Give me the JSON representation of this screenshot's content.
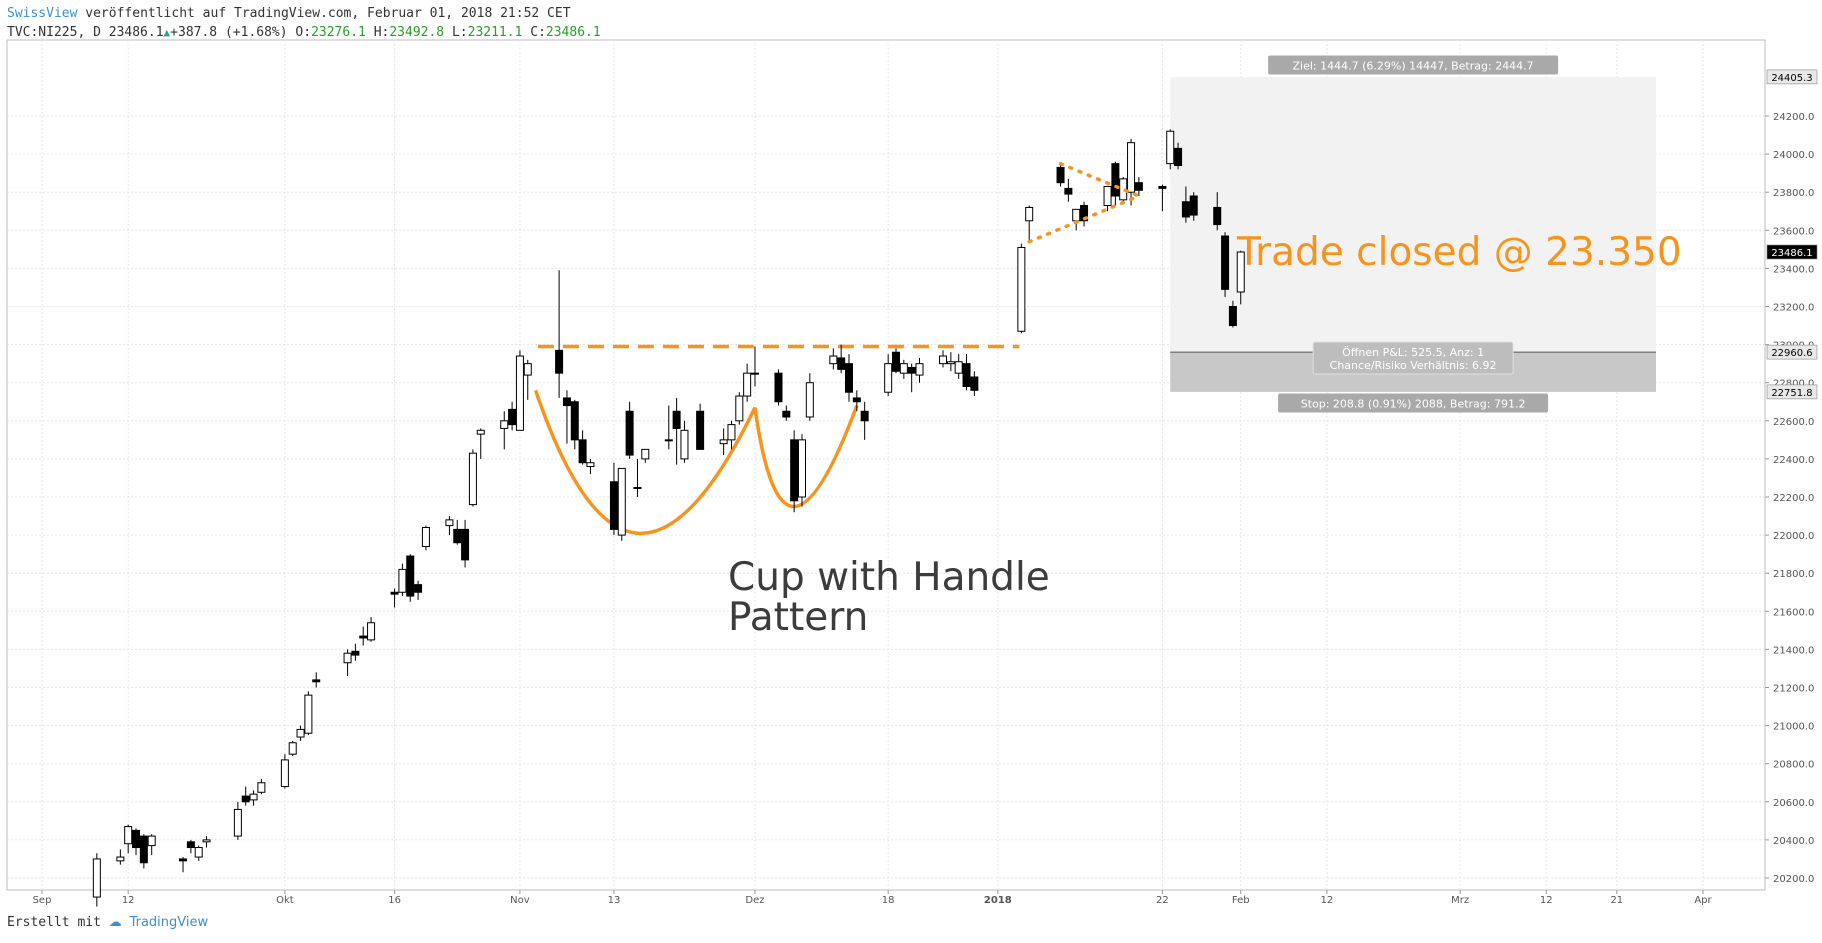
{
  "header": {
    "author": "SwissView",
    "published": "veröffentlicht auf TradingView.com, Februar 01, 2018 21:52 CET",
    "symbol_line": "TVC:NI225, D 23486.1",
    "change": "+387.8 (+1.68%)",
    "open_label": "O:",
    "open": "23276.1",
    "high_label": "H:",
    "high": "23492.8",
    "low_label": "L:",
    "low": "23211.1",
    "close_label": "C:",
    "close": "23486.1"
  },
  "footer": {
    "created_with": "Erstellt mit",
    "brand": "TradingView"
  },
  "colors": {
    "bull_fill": "#ffffff",
    "bear_fill": "#000000",
    "orange": "#f7941d",
    "target_zone": "#f2f2f2",
    "stop_zone": "#c8c8c8"
  },
  "chart_data": {
    "type": "candlestick",
    "ylim": [
      20100,
      24500
    ],
    "y_ticks": [
      20200,
      20400,
      20600,
      20800,
      21000,
      21200,
      21400,
      21600,
      21800,
      22000,
      22200,
      22400,
      22600,
      22800,
      23000,
      23200,
      23400,
      23600,
      23800,
      24000,
      24200
    ],
    "x_range": [
      "2017-08-23",
      "2018-04-06"
    ],
    "x_ticks": [
      {
        "date": "2017-09-01",
        "label": "Sep"
      },
      {
        "date": "2017-09-12",
        "label": "12"
      },
      {
        "date": "2017-10-02",
        "label": "Okt"
      },
      {
        "date": "2017-10-16",
        "label": "16"
      },
      {
        "date": "2017-11-01",
        "label": "Nov"
      },
      {
        "date": "2017-11-13",
        "label": "13"
      },
      {
        "date": "2017-12-01",
        "label": "Dez"
      },
      {
        "date": "2017-12-18",
        "label": "18"
      },
      {
        "date": "2018-01-01",
        "label": "2018",
        "bold": true
      },
      {
        "date": "2018-01-22",
        "label": "22"
      },
      {
        "date": "2018-02-01",
        "label": "Feb"
      },
      {
        "date": "2018-02-12",
        "label": "12"
      },
      {
        "date": "2018-03-01",
        "label": "Mrz"
      },
      {
        "date": "2018-03-12",
        "label": "12"
      },
      {
        "date": "2018-03-21",
        "label": "21"
      },
      {
        "date": "2018-04-01",
        "label": "Apr"
      }
    ],
    "candles": [
      {
        "d": "2017-09-08",
        "o": 20100,
        "h": 20330,
        "l": 20050,
        "c": 20300
      },
      {
        "d": "2017-09-11",
        "o": 20290,
        "h": 20350,
        "l": 20270,
        "c": 20310
      },
      {
        "d": "2017-09-12",
        "o": 20380,
        "h": 20480,
        "l": 20330,
        "c": 20470
      },
      {
        "d": "2017-09-13",
        "o": 20450,
        "h": 20460,
        "l": 20320,
        "c": 20360
      },
      {
        "d": "2017-09-14",
        "o": 20420,
        "h": 20430,
        "l": 20250,
        "c": 20280
      },
      {
        "d": "2017-09-15",
        "o": 20370,
        "h": 20430,
        "l": 20320,
        "c": 20420
      },
      {
        "d": "2017-09-19",
        "o": 20300,
        "h": 20310,
        "l": 20230,
        "c": 20290
      },
      {
        "d": "2017-09-20",
        "o": 20390,
        "h": 20400,
        "l": 20330,
        "c": 20360
      },
      {
        "d": "2017-09-21",
        "o": 20310,
        "h": 20370,
        "l": 20290,
        "c": 20360
      },
      {
        "d": "2017-09-22",
        "o": 20390,
        "h": 20420,
        "l": 20360,
        "c": 20400
      },
      {
        "d": "2017-09-26",
        "o": 20420,
        "h": 20600,
        "l": 20400,
        "c": 20560
      },
      {
        "d": "2017-09-27",
        "o": 20630,
        "h": 20680,
        "l": 20580,
        "c": 20600
      },
      {
        "d": "2017-09-28",
        "o": 20610,
        "h": 20660,
        "l": 20580,
        "c": 20640
      },
      {
        "d": "2017-09-29",
        "o": 20650,
        "h": 20720,
        "l": 20640,
        "c": 20700
      },
      {
        "d": "2017-10-02",
        "o": 20680,
        "h": 20850,
        "l": 20670,
        "c": 20820
      },
      {
        "d": "2017-10-03",
        "o": 20850,
        "h": 20920,
        "l": 20840,
        "c": 20910
      },
      {
        "d": "2017-10-04",
        "o": 20940,
        "h": 21000,
        "l": 20920,
        "c": 20980
      },
      {
        "d": "2017-10-05",
        "o": 20960,
        "h": 21180,
        "l": 20950,
        "c": 21160
      },
      {
        "d": "2017-10-06",
        "o": 21240,
        "h": 21280,
        "l": 21200,
        "c": 21230
      },
      {
        "d": "2017-10-10",
        "o": 21330,
        "h": 21400,
        "l": 21260,
        "c": 21380
      },
      {
        "d": "2017-10-11",
        "o": 21390,
        "h": 21430,
        "l": 21340,
        "c": 21370
      },
      {
        "d": "2017-10-12",
        "o": 21470,
        "h": 21520,
        "l": 21420,
        "c": 21460
      },
      {
        "d": "2017-10-13",
        "o": 21450,
        "h": 21570,
        "l": 21440,
        "c": 21540
      },
      {
        "d": "2017-10-16",
        "o": 21700,
        "h": 21720,
        "l": 21620,
        "c": 21690
      },
      {
        "d": "2017-10-17",
        "o": 21700,
        "h": 21850,
        "l": 21680,
        "c": 21820
      },
      {
        "d": "2017-10-18",
        "o": 21890,
        "h": 21900,
        "l": 21650,
        "c": 21680
      },
      {
        "d": "2017-10-19",
        "o": 21740,
        "h": 21760,
        "l": 21660,
        "c": 21700
      },
      {
        "d": "2017-10-20",
        "o": 21940,
        "h": 22050,
        "l": 21920,
        "c": 22040
      },
      {
        "d": "2017-10-23",
        "o": 22050,
        "h": 22100,
        "l": 22000,
        "c": 22080
      },
      {
        "d": "2017-10-24",
        "o": 22030,
        "h": 22080,
        "l": 21950,
        "c": 21960
      },
      {
        "d": "2017-10-25",
        "o": 22030,
        "h": 22080,
        "l": 21830,
        "c": 21870
      },
      {
        "d": "2017-10-26",
        "o": 22160,
        "h": 22450,
        "l": 22150,
        "c": 22430
      },
      {
        "d": "2017-10-27",
        "o": 22530,
        "h": 22560,
        "l": 22400,
        "c": 22550
      },
      {
        "d": "2017-10-30",
        "o": 22560,
        "h": 22650,
        "l": 22450,
        "c": 22600
      },
      {
        "d": "2017-10-31",
        "o": 22660,
        "h": 22700,
        "l": 22550,
        "c": 22580
      },
      {
        "d": "2017-11-01",
        "o": 22550,
        "h": 22970,
        "l": 22550,
        "c": 22940
      },
      {
        "d": "2017-11-02",
        "o": 22840,
        "h": 22920,
        "l": 22710,
        "c": 22900
      },
      {
        "d": "2017-11-06",
        "o": 22970,
        "h": 23390,
        "l": 22720,
        "c": 22850
      },
      {
        "d": "2017-11-07",
        "o": 22720,
        "h": 22760,
        "l": 22480,
        "c": 22680
      },
      {
        "d": "2017-11-08",
        "o": 22700,
        "h": 22710,
        "l": 22450,
        "c": 22500
      },
      {
        "d": "2017-11-09",
        "o": 22500,
        "h": 22550,
        "l": 22370,
        "c": 22380
      },
      {
        "d": "2017-11-10",
        "o": 22360,
        "h": 22400,
        "l": 22320,
        "c": 22380
      },
      {
        "d": "2017-11-13",
        "o": 22280,
        "h": 22380,
        "l": 22000,
        "c": 22030
      },
      {
        "d": "2017-11-14",
        "o": 22000,
        "h": 22350,
        "l": 21970,
        "c": 22350
      },
      {
        "d": "2017-11-15",
        "o": 22650,
        "h": 22700,
        "l": 22400,
        "c": 22420
      },
      {
        "d": "2017-11-16",
        "o": 22250,
        "h": 22400,
        "l": 22200,
        "c": 22250
      },
      {
        "d": "2017-11-17",
        "o": 22400,
        "h": 22450,
        "l": 22380,
        "c": 22450
      },
      {
        "d": "2017-11-20",
        "o": 22500,
        "h": 22680,
        "l": 22450,
        "c": 22500
      },
      {
        "d": "2017-11-21",
        "o": 22650,
        "h": 22720,
        "l": 22370,
        "c": 22560
      },
      {
        "d": "2017-11-22",
        "o": 22400,
        "h": 22600,
        "l": 22380,
        "c": 22550
      },
      {
        "d": "2017-11-24",
        "o": 22650,
        "h": 22690,
        "l": 22450,
        "c": 22450
      },
      {
        "d": "2017-11-27",
        "o": 22480,
        "h": 22560,
        "l": 22420,
        "c": 22500
      },
      {
        "d": "2017-11-28",
        "o": 22500,
        "h": 22600,
        "l": 22450,
        "c": 22580
      },
      {
        "d": "2017-11-29",
        "o": 22600,
        "h": 22750,
        "l": 22580,
        "c": 22730
      },
      {
        "d": "2017-11-30",
        "o": 22730,
        "h": 22900,
        "l": 22700,
        "c": 22850
      },
      {
        "d": "2017-12-01",
        "o": 22850,
        "h": 22990,
        "l": 22780,
        "c": 22850
      },
      {
        "d": "2017-12-04",
        "o": 22850,
        "h": 22870,
        "l": 22680,
        "c": 22700
      },
      {
        "d": "2017-12-05",
        "o": 22650,
        "h": 22680,
        "l": 22600,
        "c": 22620
      },
      {
        "d": "2017-12-06",
        "o": 22500,
        "h": 22550,
        "l": 22120,
        "c": 22180
      },
      {
        "d": "2017-12-07",
        "o": 22200,
        "h": 22530,
        "l": 22150,
        "c": 22500
      },
      {
        "d": "2017-12-08",
        "o": 22620,
        "h": 22850,
        "l": 22600,
        "c": 22800
      },
      {
        "d": "2017-12-11",
        "o": 22900,
        "h": 22980,
        "l": 22870,
        "c": 22940
      },
      {
        "d": "2017-12-12",
        "o": 22930,
        "h": 23000,
        "l": 22850,
        "c": 22870
      },
      {
        "d": "2017-12-13",
        "o": 22900,
        "h": 22950,
        "l": 22700,
        "c": 22750
      },
      {
        "d": "2017-12-14",
        "o": 22720,
        "h": 22760,
        "l": 22650,
        "c": 22700
      },
      {
        "d": "2017-12-15",
        "o": 22650,
        "h": 22700,
        "l": 22500,
        "c": 22600
      },
      {
        "d": "2017-12-18",
        "o": 22750,
        "h": 22950,
        "l": 22730,
        "c": 22900
      },
      {
        "d": "2017-12-19",
        "o": 22960,
        "h": 22980,
        "l": 22850,
        "c": 22860
      },
      {
        "d": "2017-12-20",
        "o": 22850,
        "h": 22920,
        "l": 22820,
        "c": 22900
      },
      {
        "d": "2017-12-21",
        "o": 22880,
        "h": 22900,
        "l": 22750,
        "c": 22850
      },
      {
        "d": "2017-12-22",
        "o": 22840,
        "h": 22930,
        "l": 22800,
        "c": 22900
      },
      {
        "d": "2017-12-25",
        "o": 22900,
        "h": 22970,
        "l": 22880,
        "c": 22940
      },
      {
        "d": "2017-12-26",
        "o": 22900,
        "h": 22960,
        "l": 22860,
        "c": 22910
      },
      {
        "d": "2017-12-27",
        "o": 22850,
        "h": 22950,
        "l": 22820,
        "c": 22910
      },
      {
        "d": "2017-12-28",
        "o": 22900,
        "h": 22950,
        "l": 22760,
        "c": 22780
      },
      {
        "d": "2017-12-29",
        "o": 22830,
        "h": 22860,
        "l": 22730,
        "c": 22760
      },
      {
        "d": "2018-01-04",
        "o": 23070,
        "h": 23530,
        "l": 23060,
        "c": 23510
      },
      {
        "d": "2018-01-05",
        "o": 23650,
        "h": 23730,
        "l": 23550,
        "c": 23720
      },
      {
        "d": "2018-01-09",
        "o": 23930,
        "h": 23950,
        "l": 23830,
        "c": 23850
      },
      {
        "d": "2018-01-10",
        "o": 23820,
        "h": 23870,
        "l": 23750,
        "c": 23790
      },
      {
        "d": "2018-01-11",
        "o": 23650,
        "h": 23710,
        "l": 23600,
        "c": 23710
      },
      {
        "d": "2018-01-12",
        "o": 23730,
        "h": 23750,
        "l": 23620,
        "c": 23650
      },
      {
        "d": "2018-01-15",
        "o": 23730,
        "h": 23830,
        "l": 23700,
        "c": 23830
      },
      {
        "d": "2018-01-16",
        "o": 23950,
        "h": 23960,
        "l": 23730,
        "c": 23780
      },
      {
        "d": "2018-01-17",
        "o": 23760,
        "h": 23880,
        "l": 23740,
        "c": 23870
      },
      {
        "d": "2018-01-18",
        "o": 23800,
        "h": 24080,
        "l": 23730,
        "c": 24060
      },
      {
        "d": "2018-01-19",
        "o": 23850,
        "h": 23880,
        "l": 23780,
        "c": 23810
      },
      {
        "d": "2018-01-22",
        "o": 23830,
        "h": 23840,
        "l": 23700,
        "c": 23820
      },
      {
        "d": "2018-01-23",
        "o": 23950,
        "h": 24130,
        "l": 23920,
        "c": 24120
      },
      {
        "d": "2018-01-24",
        "o": 24030,
        "h": 24060,
        "l": 23920,
        "c": 23940
      },
      {
        "d": "2018-01-25",
        "o": 23750,
        "h": 23830,
        "l": 23640,
        "c": 23670
      },
      {
        "d": "2018-01-26",
        "o": 23780,
        "h": 23800,
        "l": 23650,
        "c": 23680
      },
      {
        "d": "2018-01-29",
        "o": 23720,
        "h": 23800,
        "l": 23600,
        "c": 23630
      },
      {
        "d": "2018-01-30",
        "o": 23570,
        "h": 23590,
        "l": 23250,
        "c": 23290
      },
      {
        "d": "2018-01-31",
        "o": 23200,
        "h": 23230,
        "l": 23090,
        "c": 23100
      },
      {
        "d": "2018-02-01",
        "o": 23276.1,
        "h": 23492.8,
        "l": 23211.1,
        "c": 23486.1
      }
    ],
    "resistance_level": 22990,
    "resistance_range": [
      "2017-11-01",
      "2018-01-04"
    ],
    "cup_curve": [
      [
        "2017-11-03",
        22760
      ],
      [
        "2017-11-16",
        22010
      ],
      [
        "2017-12-01",
        22670
      ]
    ],
    "handle_curve": [
      [
        "2017-12-01",
        22670
      ],
      [
        "2017-12-06",
        22150
      ],
      [
        "2017-12-14",
        22680
      ]
    ],
    "triangle_upper": [
      [
        "2018-01-09",
        23950
      ],
      [
        "2018-01-19",
        23780
      ]
    ],
    "triangle_lower": [
      [
        "2018-01-05",
        23540
      ],
      [
        "2018-01-19",
        23780
      ]
    ],
    "annotations": {
      "pattern_label_line1": "Cup with Handle",
      "pattern_label_line2": "Pattern",
      "trade_label": "Trade closed @ 23.350"
    },
    "position": {
      "start": "2018-01-23",
      "end": "2018-03-26",
      "entry": 22960.6,
      "target": 24405.3,
      "stop": 22751.8,
      "target_label": "Ziel: 1444.7 (6.29%) 14447, Betrag: 2444.7",
      "pnl_label": "Öffnen P&L: 525.5, Anz: 1",
      "ratio_label": "Chance/Risiko Verhältnis: 6.92",
      "stop_label": "Stop: 208.8 (0.91%) 2088, Betrag: 791.2"
    },
    "price_labels": {
      "target": "24405.3",
      "last": "23486.1",
      "entry": "22960.6",
      "stop": "22751.8"
    }
  }
}
